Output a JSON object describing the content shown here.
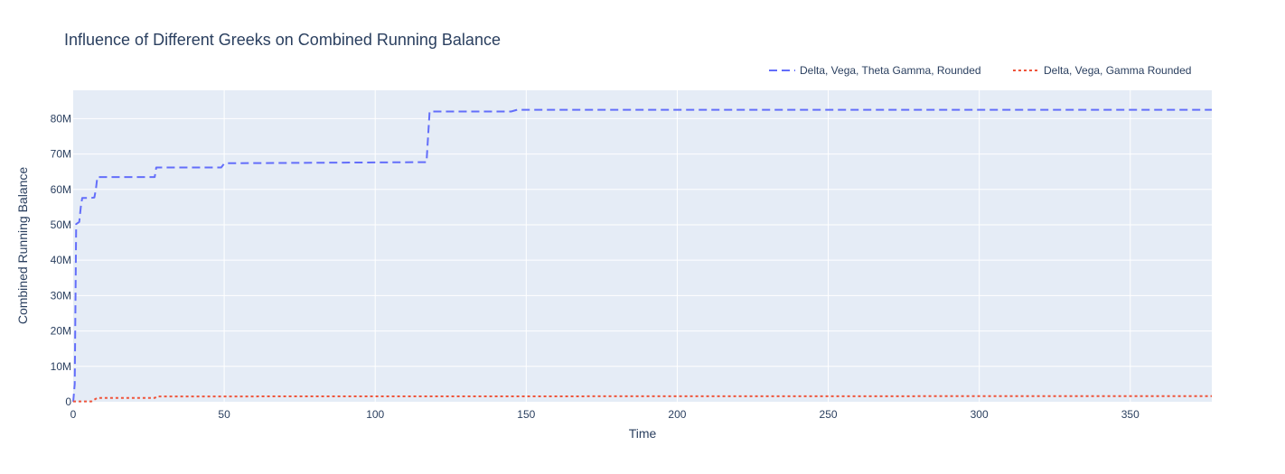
{
  "chart_data": {
    "type": "line",
    "title": "Influence of Different Greeks on Combined Running Balance",
    "xlabel": "Time",
    "ylabel": "Combined Running Balance",
    "xlim": [
      0,
      377
    ],
    "ylim": [
      0,
      88000000
    ],
    "grid": true,
    "legend_position": "top-right",
    "x_ticks": [
      0,
      50,
      100,
      150,
      200,
      250,
      300,
      350
    ],
    "x_tick_labels": [
      "0",
      "50",
      "100",
      "150",
      "200",
      "250",
      "300",
      "350"
    ],
    "y_ticks": [
      0,
      10000000,
      20000000,
      30000000,
      40000000,
      50000000,
      60000000,
      70000000,
      80000000
    ],
    "y_tick_labels": [
      "0",
      "10M",
      "20M",
      "30M",
      "40M",
      "50M",
      "60M",
      "70M",
      "80M"
    ],
    "colors": {
      "plot_background": "#e5ecf6",
      "grid": "#ffffff",
      "text": "#2a3f5f"
    },
    "series": [
      {
        "name": "Delta, Vega, Theta Gamma, Rounded",
        "color": "#636efa",
        "dash": "dash",
        "x": [
          0,
          0.5,
          1,
          2,
          2.5,
          3,
          4.5,
          6,
          7,
          7.5,
          8,
          27,
          27.5,
          49,
          50,
          51,
          117,
          118,
          145,
          147,
          377
        ],
        "y": [
          0,
          5000000,
          50200000,
          50800000,
          55000000,
          57600000,
          57600000,
          57600000,
          57700000,
          60000000,
          63500000,
          63500000,
          66200000,
          66200000,
          67300000,
          67400000,
          67700000,
          82000000,
          82000000,
          82500000,
          82500000
        ]
      },
      {
        "name": "Delta, Vega, Gamma Rounded",
        "color": "#ef553b",
        "dash": "dot",
        "x": [
          0,
          6,
          8,
          27,
          28,
          377
        ],
        "y": [
          100000,
          100000,
          1100000,
          1100000,
          1500000,
          1600000
        ]
      }
    ]
  }
}
